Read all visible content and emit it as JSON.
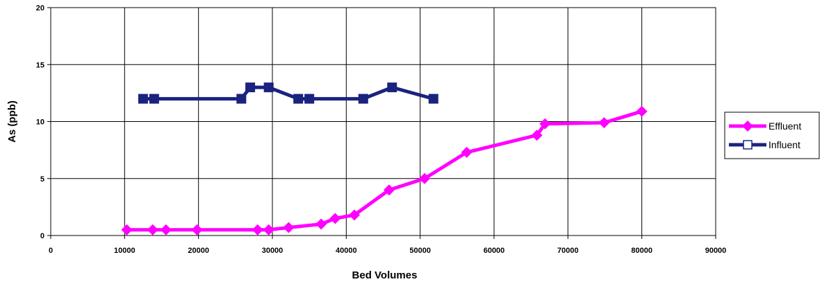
{
  "chart_data": {
    "type": "line",
    "xlabel": "Bed Volumes",
    "ylabel": "As (ppb)",
    "xlim": [
      0,
      90000
    ],
    "ylim": [
      0,
      20
    ],
    "xticks": [
      0,
      10000,
      20000,
      30000,
      40000,
      50000,
      60000,
      70000,
      80000,
      90000
    ],
    "yticks": [
      0,
      5,
      10,
      15,
      20
    ],
    "grid": true,
    "legend_position": "right",
    "series": [
      {
        "name": "Effluent",
        "color": "#ff00ff",
        "marker": "diamond",
        "x": [
          10300,
          13800,
          15600,
          19800,
          28000,
          29500,
          32200,
          36600,
          38500,
          41100,
          45800,
          50600,
          56300,
          65800,
          66900,
          74900,
          80000
        ],
        "y": [
          0.5,
          0.5,
          0.5,
          0.5,
          0.5,
          0.5,
          0.7,
          1.0,
          1.5,
          1.8,
          4.0,
          5.0,
          7.3,
          8.8,
          9.8,
          9.9,
          10.9
        ]
      },
      {
        "name": "Influent",
        "color": "#1a237e",
        "marker": "square",
        "x": [
          12500,
          14000,
          25800,
          27000,
          29500,
          33500,
          35000,
          42300,
          46200,
          51800
        ],
        "y": [
          12.0,
          12.0,
          12.0,
          13.0,
          13.0,
          12.0,
          12.0,
          12.0,
          13.0,
          12.0
        ]
      }
    ]
  }
}
